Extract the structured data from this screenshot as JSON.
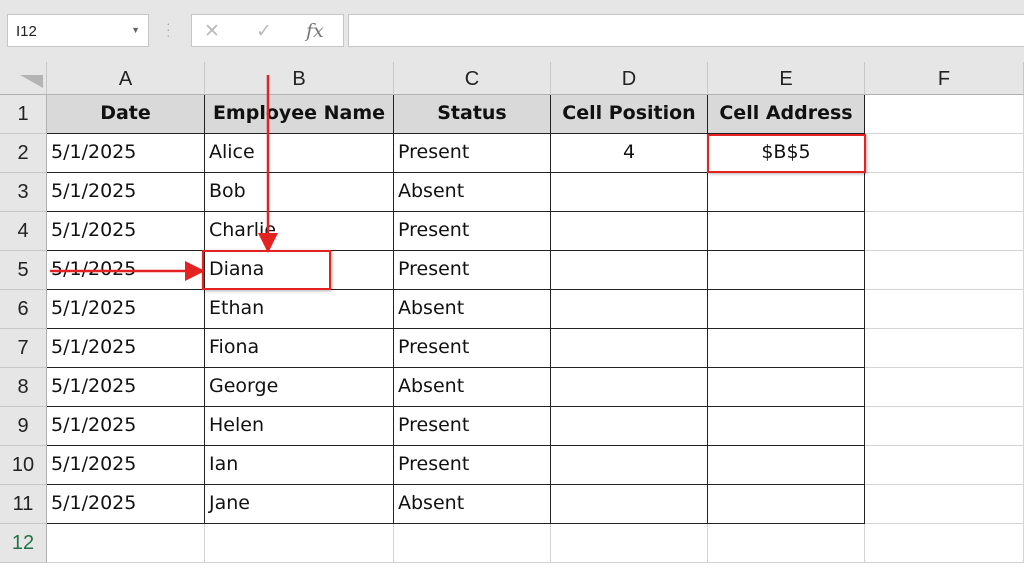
{
  "name_box": {
    "value": "I12"
  },
  "formula_bar": {
    "cancel_icon": "✕",
    "enter_icon": "✓",
    "fx_label": "fx",
    "value": ""
  },
  "columns": [
    "A",
    "B",
    "C",
    "D",
    "E",
    "F"
  ],
  "rows": [
    "1",
    "2",
    "3",
    "4",
    "5",
    "6",
    "7",
    "8",
    "9",
    "10",
    "11",
    "12"
  ],
  "headers": [
    "Date",
    "Employee Name",
    "Status",
    "Cell Position",
    "Cell Address"
  ],
  "data": [
    [
      "5/1/2025",
      "Alice",
      "Present",
      "4",
      "$B$5"
    ],
    [
      "5/1/2025",
      "Bob",
      "Absent",
      "",
      ""
    ],
    [
      "5/1/2025",
      "Charlie",
      "Present",
      "",
      ""
    ],
    [
      "5/1/2025",
      "Diana",
      "Present",
      "",
      ""
    ],
    [
      "5/1/2025",
      "Ethan",
      "Absent",
      "",
      ""
    ],
    [
      "5/1/2025",
      "Fiona",
      "Present",
      "",
      ""
    ],
    [
      "5/1/2025",
      "George",
      "Absent",
      "",
      ""
    ],
    [
      "5/1/2025",
      "Helen",
      "Present",
      "",
      ""
    ],
    [
      "5/1/2025",
      "Ian",
      "Present",
      "",
      ""
    ],
    [
      "5/1/2025",
      "Jane",
      "Absent",
      "",
      ""
    ]
  ],
  "colors": {
    "annotation": "#e52222",
    "selected_row_header": "#217346"
  }
}
